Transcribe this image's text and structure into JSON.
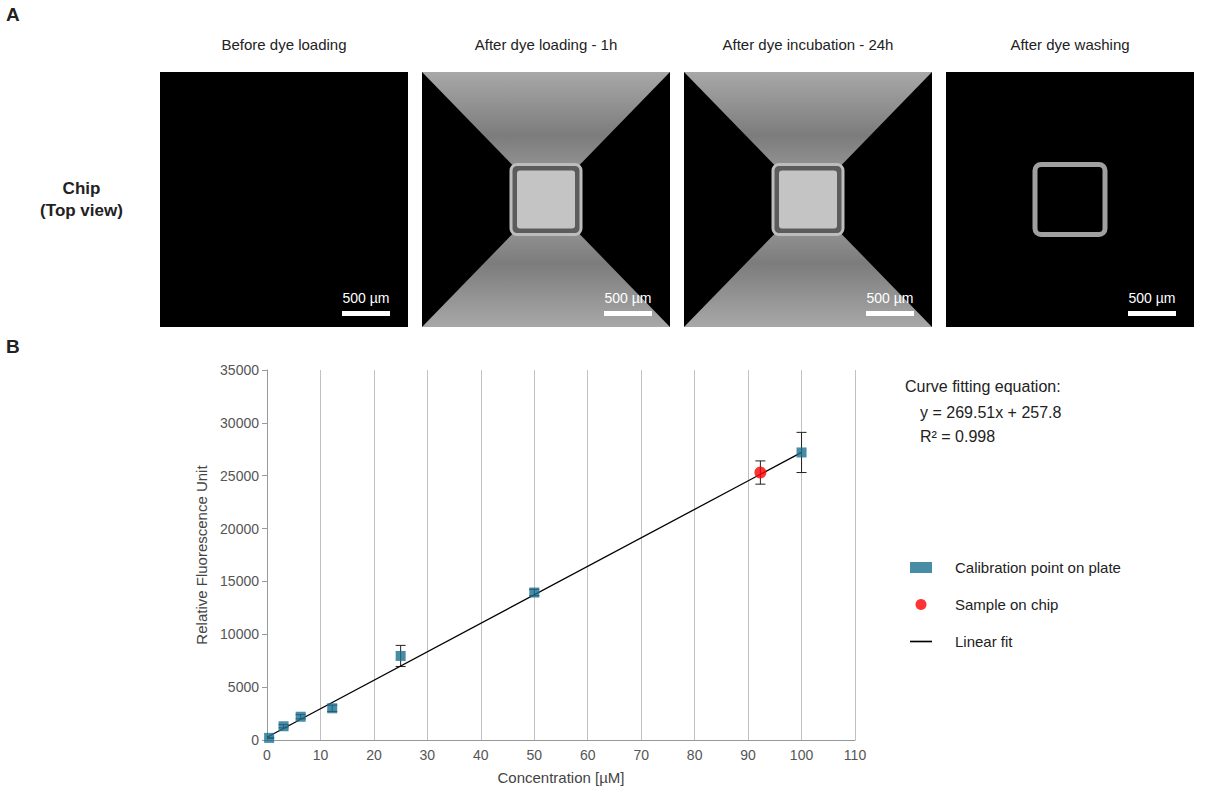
{
  "panel_a": {
    "letter": "A",
    "row_label": [
      "Chip",
      "(Top view)"
    ],
    "images": [
      {
        "title": "Before dye loading",
        "scale_bar": "500 µm"
      },
      {
        "title": "After dye loading - 1h",
        "scale_bar": "500 µm"
      },
      {
        "title": "After dye incubation - 24h",
        "scale_bar": "500 µm"
      },
      {
        "title": "After dye washing",
        "scale_bar": "500 µm"
      }
    ]
  },
  "chart_data": {
    "letter": "B",
    "type": "scatter",
    "x_label": "Concentration [µM]",
    "y_label": "Relative Fluorescence Unit",
    "xlim": [
      0,
      110
    ],
    "xticks": [
      0,
      10,
      20,
      30,
      40,
      50,
      60,
      70,
      80,
      90,
      100,
      110
    ],
    "ylim": [
      0,
      35000
    ],
    "yticks": [
      0,
      5000,
      10000,
      15000,
      20000,
      25000,
      30000,
      35000
    ],
    "grid": "x",
    "legend": "right",
    "annotation": {
      "title": "Curve fitting equation:",
      "lines": [
        "y = 269.51x + 257.8",
        "R² = 0.998"
      ]
    },
    "series": [
      {
        "name": "Calibration point on plate",
        "type": "scatter",
        "marker": "square",
        "color": "#1b6f8f",
        "x": [
          0.4,
          3.1,
          6.3,
          12.2,
          25,
          50,
          100
        ],
        "values": [
          200,
          1300,
          2200,
          3000,
          7950,
          13950,
          27200
        ],
        "errors": [
          50,
          150,
          200,
          300,
          1000,
          300,
          1900
        ]
      },
      {
        "name": "Sample on chip",
        "type": "scatter",
        "marker": "circle",
        "color": "#ff0000",
        "x": [
          92.3
        ],
        "values": [
          25300
        ],
        "errors": [
          1100
        ]
      },
      {
        "name": "Linear fit",
        "type": "line",
        "line_style": "solid",
        "color": "#000000",
        "x": [
          0,
          100
        ],
        "values": [
          257.8,
          27208.8
        ]
      }
    ]
  }
}
